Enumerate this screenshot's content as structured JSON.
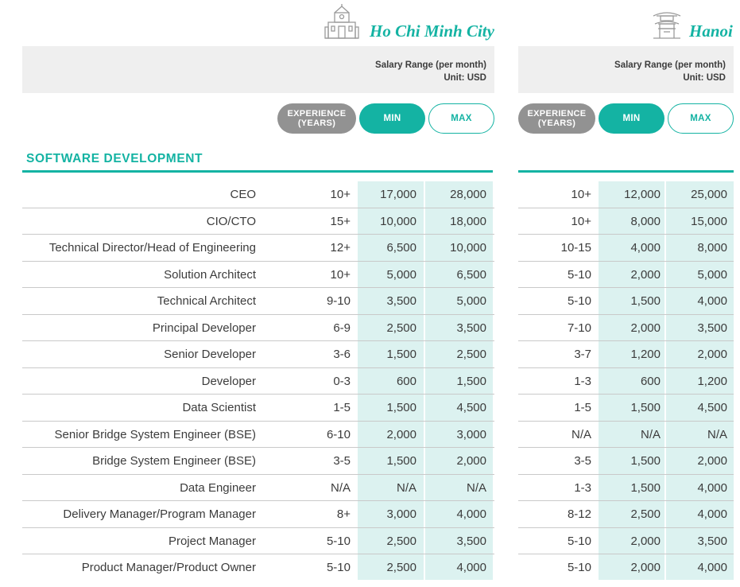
{
  "cities": [
    {
      "name": "Ho Chi Minh City",
      "icon": "city-hall-icon"
    },
    {
      "name": "Hanoi",
      "icon": "pagoda-gate-icon"
    }
  ],
  "salary_header": {
    "title": "Salary Range (per month)",
    "unit": "Unit: USD"
  },
  "pills": {
    "experience_line1": "EXPERIENCE",
    "experience_line2": "(YEARS)",
    "min": "MIN",
    "max": "MAX"
  },
  "section": {
    "title": "SOFTWARE DEVELOPMENT"
  },
  "colors": {
    "accent": "#14b3a3",
    "highlight": "#dcf2f0",
    "header_bg": "#efefef",
    "pill_grey": "#929292"
  },
  "rows": [
    {
      "role": "CEO",
      "hcm": [
        "10+",
        "17,000",
        "28,000"
      ],
      "hn": [
        "10+",
        "12,000",
        "25,000"
      ]
    },
    {
      "role": "CIO/CTO",
      "hcm": [
        "15+",
        "10,000",
        "18,000"
      ],
      "hn": [
        "10+",
        "8,000",
        "15,000"
      ]
    },
    {
      "role": "Technical Director/Head of Engineering",
      "hcm": [
        "12+",
        "6,500",
        "10,000"
      ],
      "hn": [
        "10-15",
        "4,000",
        "8,000"
      ]
    },
    {
      "role": "Solution Architect",
      "hcm": [
        "10+",
        "5,000",
        "6,500"
      ],
      "hn": [
        "5-10",
        "2,000",
        "5,000"
      ]
    },
    {
      "role": "Technical Architect",
      "hcm": [
        "9-10",
        "3,500",
        "5,000"
      ],
      "hn": [
        "5-10",
        "1,500",
        "4,000"
      ]
    },
    {
      "role": "Principal Developer",
      "hcm": [
        "6-9",
        "2,500",
        "3,500"
      ],
      "hn": [
        "7-10",
        "2,000",
        "3,500"
      ]
    },
    {
      "role": "Senior Developer",
      "hcm": [
        "3-6",
        "1,500",
        "2,500"
      ],
      "hn": [
        "3-7",
        "1,200",
        "2,000"
      ]
    },
    {
      "role": "Developer",
      "hcm": [
        "0-3",
        "600",
        "1,500"
      ],
      "hn": [
        "1-3",
        "600",
        "1,200"
      ]
    },
    {
      "role": "Data Scientist",
      "hcm": [
        "1-5",
        "1,500",
        "4,500"
      ],
      "hn": [
        "1-5",
        "1,500",
        "4,500"
      ]
    },
    {
      "role": "Senior Bridge System Engineer (BSE)",
      "hcm": [
        "6-10",
        "2,000",
        "3,000"
      ],
      "hn": [
        "N/A",
        "N/A",
        "N/A"
      ]
    },
    {
      "role": "Bridge System Engineer (BSE)",
      "hcm": [
        "3-5",
        "1,500",
        "2,000"
      ],
      "hn": [
        "3-5",
        "1,500",
        "2,000"
      ]
    },
    {
      "role": "Data Engineer",
      "hcm": [
        "N/A",
        "N/A",
        "N/A"
      ],
      "hn": [
        "1-3",
        "1,500",
        "4,000"
      ]
    },
    {
      "role": "Delivery Manager/Program Manager",
      "hcm": [
        "8+",
        "3,000",
        "4,000"
      ],
      "hn": [
        "8-12",
        "2,500",
        "4,000"
      ]
    },
    {
      "role": "Project Manager",
      "hcm": [
        "5-10",
        "2,500",
        "3,500"
      ],
      "hn": [
        "5-10",
        "2,000",
        "3,500"
      ]
    },
    {
      "role": "Product Manager/Product Owner",
      "hcm": [
        "5-10",
        "2,500",
        "4,000"
      ],
      "hn": [
        "5-10",
        "2,000",
        "4,000"
      ]
    }
  ]
}
